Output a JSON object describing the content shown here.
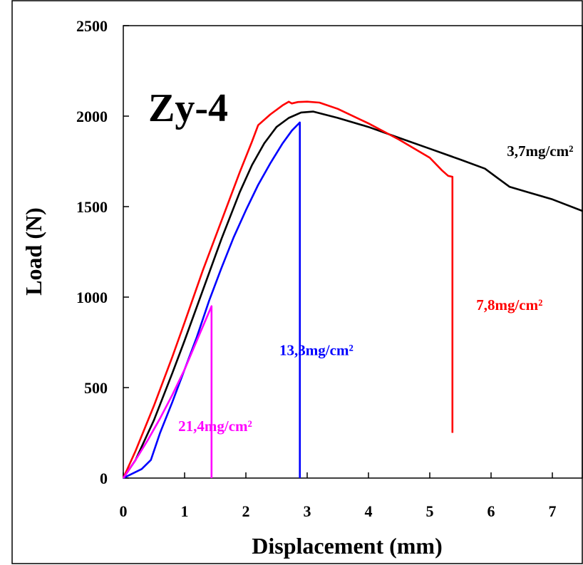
{
  "chart_data": {
    "type": "line",
    "title": "Zy-4",
    "xlabel": "Displacement (mm)",
    "ylabel": "Load (N)",
    "xlim": [
      0,
      7.5
    ],
    "ylim": [
      0,
      2500
    ],
    "xticks": [
      0,
      1,
      2,
      3,
      4,
      5,
      6,
      7
    ],
    "yticks": [
      0,
      500,
      1000,
      1500,
      2000,
      2500
    ],
    "grid": false,
    "series": [
      {
        "name": "3,7mg/cm²",
        "color": "#000000",
        "x": [
          0,
          0.2,
          0.5,
          0.8,
          1.0,
          1.3,
          1.6,
          1.9,
          2.1,
          2.3,
          2.5,
          2.7,
          2.9,
          3.1,
          3.5,
          4.0,
          4.5,
          5.0,
          5.5,
          5.9,
          6.1,
          6.3,
          6.6,
          7.0,
          7.5
        ],
        "y": [
          0,
          100,
          320,
          580,
          760,
          1040,
          1320,
          1580,
          1730,
          1850,
          1940,
          1990,
          2020,
          2025,
          1990,
          1940,
          1880,
          1820,
          1760,
          1710,
          1660,
          1610,
          1580,
          1540,
          1475
        ]
      },
      {
        "name": "7,8mg/cm²",
        "color": "#ff0000",
        "x": [
          0,
          0.2,
          0.5,
          0.8,
          1.0,
          1.3,
          1.6,
          1.9,
          2.1,
          2.2,
          2.4,
          2.6,
          2.7,
          2.75,
          2.85,
          3.0,
          3.2,
          3.5,
          4.0,
          4.5,
          5.0,
          5.2,
          5.3,
          5.37,
          5.37
        ],
        "y": [
          0,
          150,
          400,
          670,
          860,
          1150,
          1420,
          1690,
          1860,
          1950,
          2010,
          2060,
          2080,
          2070,
          2078,
          2080,
          2075,
          2040,
          1960,
          1870,
          1770,
          1700,
          1670,
          1665,
          250
        ]
      },
      {
        "name": "13,3mg/cm²",
        "color": "#0000ff",
        "x": [
          0,
          0.3,
          0.45,
          0.6,
          0.8,
          1.0,
          1.2,
          1.4,
          1.6,
          1.8,
          2.0,
          2.2,
          2.4,
          2.6,
          2.75,
          2.88,
          2.88
        ],
        "y": [
          0,
          50,
          100,
          250,
          420,
          600,
          780,
          980,
          1160,
          1330,
          1480,
          1620,
          1740,
          1850,
          1920,
          1965,
          0
        ]
      },
      {
        "name": "21,4mg/cm²",
        "color": "#ff00ff",
        "x": [
          0,
          0.2,
          0.4,
          0.6,
          0.8,
          1.0,
          1.2,
          1.44,
          1.44
        ],
        "y": [
          0,
          100,
          210,
          330,
          460,
          600,
          760,
          950,
          0
        ]
      }
    ],
    "annotations": [
      {
        "text": "3,7mg/cm²",
        "color": "#000000",
        "x": 6.8,
        "y": 1780
      },
      {
        "text": "7,8mg/cm²",
        "color": "#ff0000",
        "x": 6.3,
        "y": 930
      },
      {
        "text": "13,3mg/cm²",
        "color": "#0000ff",
        "x": 3.15,
        "y": 680
      },
      {
        "text": "21,4mg/cm²",
        "color": "#ff00ff",
        "x": 1.5,
        "y": 260
      }
    ]
  }
}
